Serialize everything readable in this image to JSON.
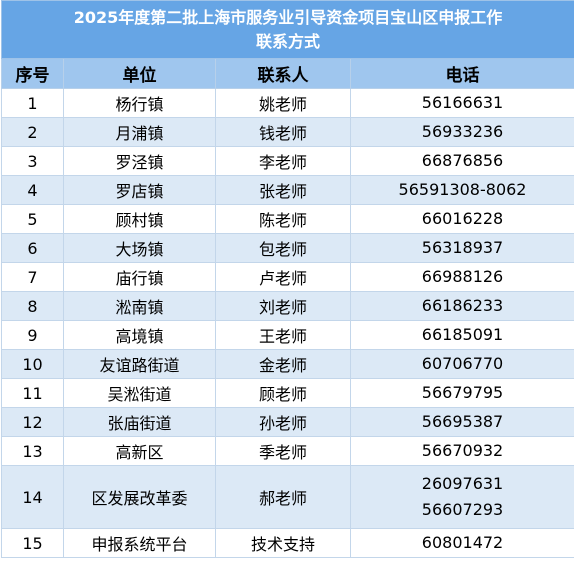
{
  "title_line1": "2025年度第二批上海市服务业引导资金项目宝山区申报工作",
  "title_line2": "联系方式",
  "headers": {
    "index": "序号",
    "unit": "单位",
    "contact": "联系人",
    "phone": "电话"
  },
  "rows": [
    {
      "index": "1",
      "unit": "杨行镇",
      "contact": "姚老师",
      "phone": [
        "56166631"
      ]
    },
    {
      "index": "2",
      "unit": "月浦镇",
      "contact": "钱老师",
      "phone": [
        "56933236"
      ]
    },
    {
      "index": "3",
      "unit": "罗泾镇",
      "contact": "李老师",
      "phone": [
        "66876856"
      ]
    },
    {
      "index": "4",
      "unit": "罗店镇",
      "contact": "张老师",
      "phone": [
        "56591308-8062"
      ]
    },
    {
      "index": "5",
      "unit": "顾村镇",
      "contact": "陈老师",
      "phone": [
        "66016228"
      ]
    },
    {
      "index": "6",
      "unit": "大场镇",
      "contact": "包老师",
      "phone": [
        "56318937"
      ]
    },
    {
      "index": "7",
      "unit": "庙行镇",
      "contact": "卢老师",
      "phone": [
        "66988126"
      ]
    },
    {
      "index": "8",
      "unit": "淞南镇",
      "contact": "刘老师",
      "phone": [
        "66186233"
      ]
    },
    {
      "index": "9",
      "unit": "高境镇",
      "contact": "王老师",
      "phone": [
        "66185091"
      ]
    },
    {
      "index": "10",
      "unit": "友谊路街道",
      "contact": "金老师",
      "phone": [
        "60706770"
      ]
    },
    {
      "index": "11",
      "unit": "吴淞街道",
      "contact": "顾老师",
      "phone": [
        "56679795"
      ]
    },
    {
      "index": "12",
      "unit": "张庙街道",
      "contact": "孙老师",
      "phone": [
        "56695387"
      ]
    },
    {
      "index": "13",
      "unit": "高新区",
      "contact": "季老师",
      "phone": [
        "56670932"
      ]
    },
    {
      "index": "14",
      "unit": "区发展改革委",
      "contact": "郝老师",
      "phone": [
        "26097631",
        "56607293"
      ]
    },
    {
      "index": "15",
      "unit": "申报系统平台",
      "contact": "技术支持",
      "phone": [
        "60801472"
      ]
    }
  ]
}
